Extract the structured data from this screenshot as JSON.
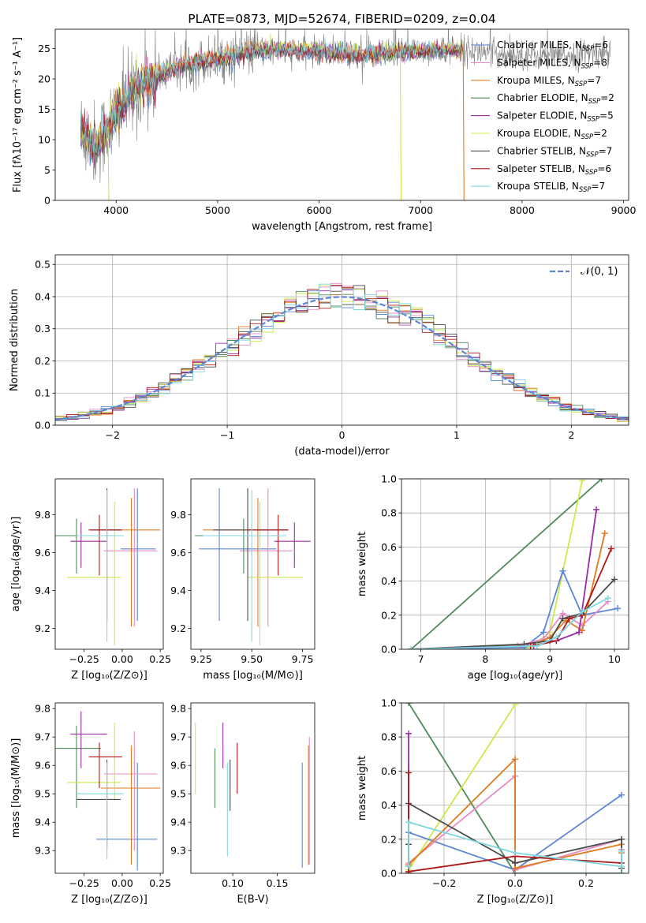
{
  "colors": {
    "chabrier_miles": "#5b86d6",
    "salpeter_miles": "#e88ac4",
    "kroupa_miles": "#e07a1f",
    "chabrier_elodie": "#4f8a5b",
    "salpeter_elodie": "#9b2aa8",
    "kroupa_elodie": "#cfe84a",
    "chabrier_stelib": "#4a4a4a",
    "salpeter_stelib": "#b01818",
    "kroupa_stelib": "#7ed8e0",
    "data_spectrum": "#808080"
  },
  "chart_data": [
    {
      "id": "spectrum",
      "type": "line",
      "title": "PLATE=0873, MJD=52674, FIBERID=0209, z=0.04",
      "xlabel": "wavelength [Angstrom, rest frame]",
      "ylabel": "Flux [fλ10⁻¹⁷ erg cm⁻² s⁻¹ A⁻¹]",
      "xlim": [
        3400,
        9050
      ],
      "ylim": [
        0,
        28.2
      ],
      "xticks": [
        4000,
        5000,
        6000,
        7000,
        8000,
        9000
      ],
      "yticks": [
        0,
        5,
        10,
        15,
        20,
        25
      ],
      "grid": false,
      "legend_position": "top-right",
      "legend": [
        {
          "key": "chabrier_miles",
          "model": "Chabrier MILES",
          "n": "6"
        },
        {
          "key": "salpeter_miles",
          "model": "Salpeter MILES",
          "n": "8"
        },
        {
          "key": "kroupa_miles",
          "model": "Kroupa MILES",
          "n": "7"
        },
        {
          "key": "chabrier_elodie",
          "model": "Chabrier ELODIE",
          "n": "2"
        },
        {
          "key": "salpeter_elodie",
          "model": "Salpeter ELODIE",
          "n": "5"
        },
        {
          "key": "kroupa_elodie",
          "model": "Kroupa ELODIE",
          "n": "2"
        },
        {
          "key": "chabrier_stelib",
          "model": "Chabrier STELIB",
          "n": "7"
        },
        {
          "key": "salpeter_stelib",
          "model": "Salpeter STELIB",
          "n": "6"
        },
        {
          "key": "kroupa_stelib",
          "model": "Kroupa STELIB",
          "n": "7"
        }
      ],
      "continuum": {
        "x": [
          3650,
          3800,
          3900,
          4000,
          4100,
          4200,
          4300,
          4400,
          4600,
          4800,
          5000,
          5200,
          5400,
          5600,
          5800,
          6000,
          6200,
          6400,
          6600,
          6800,
          7000,
          7200,
          7400,
          7600,
          7800,
          8000,
          8200,
          8400,
          8600,
          8800
        ],
        "y": [
          11.5,
          9.0,
          11.5,
          14.5,
          16.5,
          18.5,
          19.5,
          20.5,
          22.0,
          22.8,
          23.3,
          24.0,
          24.8,
          24.8,
          24.6,
          24.6,
          24.3,
          24.0,
          24.0,
          24.5,
          24.6,
          24.7,
          24.8,
          24.5,
          24.0,
          24.0,
          23.8,
          23.8,
          24.2,
          24.5
        ]
      },
      "model_drops": [
        {
          "key": "kroupa_elodie",
          "x": 3920
        },
        {
          "key": "kroupa_elodie",
          "x": 6800
        },
        {
          "key": "kroupa_miles",
          "x": 7420
        }
      ],
      "data_range": [
        3650,
        8870
      ],
      "model_range": [
        3650,
        7420
      ]
    },
    {
      "id": "residuals",
      "type": "histogram",
      "xlabel": "(data-model)/error",
      "ylabel": "Normed distribution",
      "xlim": [
        -2.5,
        2.5
      ],
      "ylim": [
        0,
        0.53
      ],
      "xticks": [
        -2,
        -1,
        0,
        1,
        2
      ],
      "yticks": [
        0.0,
        0.1,
        0.2,
        0.3,
        0.4,
        0.5
      ],
      "grid": true,
      "legend_position": "top-right",
      "reference_curve": {
        "label": "𝒩(0, 1)",
        "mean": 0,
        "sigma": 1,
        "color": "#5b86d6"
      },
      "bin_width": 0.1
    },
    {
      "id": "z-age",
      "type": "errorbar",
      "xlabel": "Z [log₁₀(Z/Z⊙)]",
      "ylabel": "age  [log₁₀(age/yr)]",
      "xlim": [
        -0.44,
        0.27
      ],
      "ylim": [
        9.09,
        9.99
      ],
      "xticks": [
        -0.25,
        0.0,
        0.25
      ],
      "yticks": [
        9.2,
        9.4,
        9.6,
        9.8
      ],
      "grid": false,
      "points": [
        {
          "key": "chabrier_miles",
          "x": 0.1,
          "xerr": [
            0.11,
            0.12
          ],
          "y": 9.62,
          "yerr": [
            0.38,
            0.32
          ]
        },
        {
          "key": "salpeter_miles",
          "x": 0.08,
          "xerr": [
            0.2,
            0.15
          ],
          "y": 9.61,
          "yerr": [
            0.4,
            0.33
          ]
        },
        {
          "key": "kroupa_miles",
          "x": 0.06,
          "xerr": [
            0.18,
            0.19
          ],
          "y": 9.72,
          "yerr": [
            0.51,
            0.17
          ]
        },
        {
          "key": "chabrier_elodie",
          "x": -0.3,
          "xerr": [
            0.14,
            0.16
          ],
          "y": 9.69,
          "yerr": [
            0.2,
            0.09
          ]
        },
        {
          "key": "salpeter_elodie",
          "x": -0.27,
          "xerr": [
            0.07,
            0.17
          ],
          "y": 9.66,
          "yerr": [
            0.14,
            0.1
          ]
        },
        {
          "key": "kroupa_elodie",
          "x": -0.05,
          "xerr": [
            0.31,
            0.04
          ],
          "y": 9.47,
          "yerr": [
            0.36,
            0.4
          ]
        },
        {
          "key": "chabrier_stelib",
          "x": -0.1,
          "xerr": [
            0.11,
            0.09
          ],
          "y": 9.72,
          "yerr": [
            0.48,
            0.22
          ]
        },
        {
          "key": "salpeter_stelib",
          "x": -0.15,
          "xerr": [
            0.07,
            0.15
          ],
          "y": 9.72,
          "yerr": [
            0.24,
            0.08
          ]
        },
        {
          "key": "kroupa_stelib",
          "x": -0.1,
          "xerr": [
            0.2,
            0.11
          ],
          "y": 9.69,
          "yerr": [
            0.56,
            0.24
          ]
        }
      ]
    },
    {
      "id": "mass-age",
      "type": "errorbar",
      "xlabel": "mass [log₁₀(M/M⊙)]",
      "ylabel": "",
      "xlim": [
        9.2,
        9.81
      ],
      "ylim": [
        9.09,
        9.99
      ],
      "xticks": [
        9.25,
        9.5,
        9.75
      ],
      "yticks": [
        9.2,
        9.4,
        9.6,
        9.8
      ],
      "grid": false,
      "points": [
        {
          "key": "chabrier_miles",
          "x": 9.34,
          "xerr": [
            0.1,
            0.28
          ],
          "y": 9.62,
          "yerr": [
            0.38,
            0.32
          ]
        },
        {
          "key": "salpeter_miles",
          "x": 9.58,
          "xerr": [
            0.14,
            0.12
          ],
          "y": 9.61,
          "yerr": [
            0.4,
            0.33
          ]
        },
        {
          "key": "kroupa_miles",
          "x": 9.53,
          "xerr": [
            0.27,
            0.15
          ],
          "y": 9.72,
          "yerr": [
            0.51,
            0.17
          ]
        },
        {
          "key": "chabrier_elodie",
          "x": 9.46,
          "xerr": [
            0.24,
            0.14
          ],
          "y": 9.69,
          "yerr": [
            0.2,
            0.09
          ]
        },
        {
          "key": "salpeter_elodie",
          "x": 9.71,
          "xerr": [
            0.1,
            0.08
          ],
          "y": 9.66,
          "yerr": [
            0.14,
            0.1
          ]
        },
        {
          "key": "kroupa_elodie",
          "x": 9.54,
          "xerr": [
            0.06,
            0.21
          ],
          "y": 9.47,
          "yerr": [
            0.36,
            0.4
          ]
        },
        {
          "key": "chabrier_stelib",
          "x": 9.48,
          "xerr": [
            0.17,
            0.2
          ],
          "y": 9.72,
          "yerr": [
            0.48,
            0.22
          ]
        },
        {
          "key": "salpeter_stelib",
          "x": 9.63,
          "xerr": [
            0.15,
            0.05
          ],
          "y": 9.72,
          "yerr": [
            0.24,
            0.08
          ]
        },
        {
          "key": "kroupa_stelib",
          "x": 9.5,
          "xerr": [
            0.24,
            0.17
          ],
          "y": 9.69,
          "yerr": [
            0.56,
            0.24
          ]
        }
      ]
    },
    {
      "id": "age-weight",
      "type": "line",
      "xlabel": "age  [log₁₀(age/yr)]",
      "ylabel": "mass weight",
      "xlim": [
        6.7,
        10.22
      ],
      "ylim": [
        0,
        1
      ],
      "xticks": [
        7,
        8,
        9,
        10
      ],
      "yticks": [
        0.0,
        0.2,
        0.4,
        0.6,
        0.8,
        1.0
      ],
      "grid": true,
      "series": [
        {
          "key": "chabrier_elodie",
          "x": [
            6.85,
            9.8
          ],
          "y": [
            0.0,
            1.0
          ]
        },
        {
          "key": "kroupa_elodie",
          "x": [
            6.85,
            8.7,
            9.0,
            9.5
          ],
          "y": [
            0.0,
            0.01,
            0.1,
            0.99
          ]
        },
        {
          "key": "chabrier_miles",
          "x": [
            6.85,
            8.6,
            8.9,
            9.2,
            9.5,
            10.05
          ],
          "y": [
            0.0,
            0.01,
            0.1,
            0.46,
            0.2,
            0.24
          ]
        },
        {
          "key": "salpeter_miles",
          "x": [
            6.85,
            8.5,
            8.9,
            9.2,
            9.5,
            9.9
          ],
          "y": [
            0.0,
            0.02,
            0.06,
            0.21,
            0.14,
            0.28
          ]
        },
        {
          "key": "kroupa_miles",
          "x": [
            6.85,
            8.7,
            9.0,
            9.25,
            9.5,
            9.85
          ],
          "y": [
            0.0,
            0.02,
            0.07,
            0.17,
            0.11,
            0.68
          ]
        },
        {
          "key": "salpeter_elodie",
          "x": [
            6.85,
            8.75,
            9.1,
            9.45,
            9.72
          ],
          "y": [
            0.0,
            0.02,
            0.05,
            0.1,
            0.82
          ]
        },
        {
          "key": "chabrier_stelib",
          "x": [
            6.85,
            8.6,
            9.0,
            9.2,
            9.5,
            10.0
          ],
          "y": [
            0.0,
            0.03,
            0.05,
            0.18,
            0.21,
            0.41
          ]
        },
        {
          "key": "salpeter_stelib",
          "x": [
            6.85,
            8.7,
            9.1,
            9.3,
            9.5,
            9.95
          ],
          "y": [
            0.0,
            0.02,
            0.05,
            0.18,
            0.2,
            0.59
          ]
        },
        {
          "key": "kroupa_stelib",
          "x": [
            6.85,
            8.8,
            9.1,
            9.5,
            9.9
          ],
          "y": [
            0.0,
            0.02,
            0.07,
            0.22,
            0.3
          ]
        }
      ]
    },
    {
      "id": "z-mass",
      "type": "errorbar",
      "xlabel": "Z [log₁₀(Z/Z⊙)]",
      "ylabel": "mass [log₁₀(M/M⊙)]",
      "xlim": [
        -0.44,
        0.27
      ],
      "ylim": [
        9.22,
        9.82
      ],
      "xticks": [
        -0.25,
        0.0,
        0.25
      ],
      "yticks": [
        9.3,
        9.4,
        9.5,
        9.6,
        9.7,
        9.8
      ],
      "grid": false,
      "points": [
        {
          "key": "chabrier_miles",
          "x": 0.1,
          "xerr": [
            0.27,
            0.13
          ],
          "y": 9.34,
          "yerr": [
            0.11,
            0.27
          ]
        },
        {
          "key": "salpeter_miles",
          "x": 0.08,
          "xerr": [
            0.2,
            0.15
          ],
          "y": 9.57,
          "yerr": [
            0.27,
            0.15
          ]
        },
        {
          "key": "kroupa_miles",
          "x": 0.06,
          "xerr": [
            0.2,
            0.19
          ],
          "y": 9.52,
          "yerr": [
            0.27,
            0.15
          ]
        },
        {
          "key": "chabrier_elodie",
          "x": -0.3,
          "xerr": [
            0.14,
            0.16
          ],
          "y": 9.66,
          "yerr": [
            0.21,
            0.08
          ]
        },
        {
          "key": "salpeter_elodie",
          "x": -0.27,
          "xerr": [
            0.07,
            0.17
          ],
          "y": 9.71,
          "yerr": [
            0.12,
            0.08
          ]
        },
        {
          "key": "kroupa_elodie",
          "x": -0.05,
          "xerr": [
            0.31,
            0.04
          ],
          "y": 9.54,
          "yerr": [
            0.06,
            0.21
          ]
        },
        {
          "key": "chabrier_stelib",
          "x": -0.1,
          "xerr": [
            0.2,
            0.09
          ],
          "y": 9.48,
          "yerr": [
            0.17,
            0.14
          ]
        },
        {
          "key": "salpeter_stelib",
          "x": -0.15,
          "xerr": [
            0.07,
            0.15
          ],
          "y": 9.63,
          "yerr": [
            0.11,
            0.05
          ]
        },
        {
          "key": "kroupa_stelib",
          "x": -0.1,
          "xerr": [
            0.2,
            0.11
          ],
          "y": 9.5,
          "yerr": [
            0.23,
            0.11
          ]
        }
      ]
    },
    {
      "id": "ebv-mass",
      "type": "errorbar",
      "xlabel": "E(B-V)",
      "ylabel": "",
      "xlim": [
        0.053,
        0.192
      ],
      "ylim": [
        9.22,
        9.82
      ],
      "xticks": [
        0.1,
        0.15
      ],
      "yticks": [
        9.3,
        9.4,
        9.5,
        9.6,
        9.7,
        9.8
      ],
      "grid": false,
      "points": [
        {
          "key": "chabrier_miles",
          "x": 0.178,
          "y": 9.42,
          "yerr": [
            0.18,
            0.19
          ]
        },
        {
          "key": "salpeter_miles",
          "x": 0.186,
          "y": 9.47,
          "yerr": [
            0.22,
            0.23
          ]
        },
        {
          "key": "kroupa_miles",
          "x": 0.185,
          "y": 9.47,
          "yerr": [
            0.22,
            0.2
          ]
        },
        {
          "key": "chabrier_elodie",
          "x": 0.08,
          "y": 9.56,
          "yerr": [
            0.11,
            0.1
          ]
        },
        {
          "key": "salpeter_elodie",
          "x": 0.089,
          "y": 9.65,
          "yerr": [
            0.06,
            0.1
          ]
        },
        {
          "key": "kroupa_elodie",
          "x": 0.058,
          "y": 9.62,
          "yerr": [
            0.12,
            0.13
          ]
        },
        {
          "key": "chabrier_stelib",
          "x": 0.097,
          "y": 9.53,
          "yerr": [
            0.09,
            0.09
          ]
        },
        {
          "key": "salpeter_stelib",
          "x": 0.105,
          "y": 9.58,
          "yerr": [
            0.08,
            0.1
          ]
        },
        {
          "key": "kroupa_stelib",
          "x": 0.094,
          "y": 9.42,
          "yerr": [
            0.14,
            0.19
          ]
        }
      ]
    },
    {
      "id": "z-weight",
      "type": "line",
      "xlabel": "Z [log₁₀(Z/Z⊙)]",
      "ylabel": "mass weight",
      "xlim": [
        -0.32,
        0.32
      ],
      "ylim": [
        0,
        1
      ],
      "xticks": [
        -0.2,
        0.0,
        0.2
      ],
      "yticks": [
        0.0,
        0.2,
        0.4,
        0.6,
        0.8,
        1.0
      ],
      "grid": true,
      "series": [
        {
          "key": "chabrier_elodie",
          "x": [
            -0.3,
            0.0,
            0.3
          ],
          "y": [
            1.0,
            0.0,
            0.0
          ]
        },
        {
          "key": "kroupa_elodie",
          "x": [
            -0.3,
            0.0
          ],
          "y": [
            0.02,
            0.99
          ]
        },
        {
          "key": "chabrier_miles",
          "x": [
            -0.3,
            -0.3,
            0.0,
            0.3
          ],
          "y": [
            0.04,
            0.24,
            0.02,
            0.46
          ]
        },
        {
          "key": "salpeter_miles",
          "x": [
            -0.3,
            0.0,
            0.0,
            0.3,
            0.3
          ],
          "y": [
            0.06,
            0.57,
            0.02,
            0.2,
            0.14
          ]
        },
        {
          "key": "kroupa_miles",
          "x": [
            -0.3,
            0.0,
            0.0,
            0.3,
            0.3
          ],
          "y": [
            0.05,
            0.67,
            0.03,
            0.17,
            0.12
          ]
        },
        {
          "key": "salpeter_elodie",
          "x": [
            -0.3,
            -0.3
          ],
          "y": [
            0.0,
            0.82
          ]
        },
        {
          "key": "chabrier_stelib",
          "x": [
            -0.3,
            -0.3,
            0.0,
            0.3,
            0.3
          ],
          "y": [
            0.17,
            0.41,
            0.06,
            0.2,
            0.03
          ]
        },
        {
          "key": "salpeter_stelib",
          "x": [
            -0.3,
            -0.3,
            -0.3,
            0.0,
            0.3
          ],
          "y": [
            0.59,
            0.0,
            0.01,
            0.1,
            0.06
          ]
        },
        {
          "key": "kroupa_stelib",
          "x": [
            -0.3,
            -0.3,
            0.0,
            0.3,
            0.3
          ],
          "y": [
            0.04,
            0.3,
            0.12,
            0.04,
            0.13
          ]
        }
      ]
    }
  ]
}
